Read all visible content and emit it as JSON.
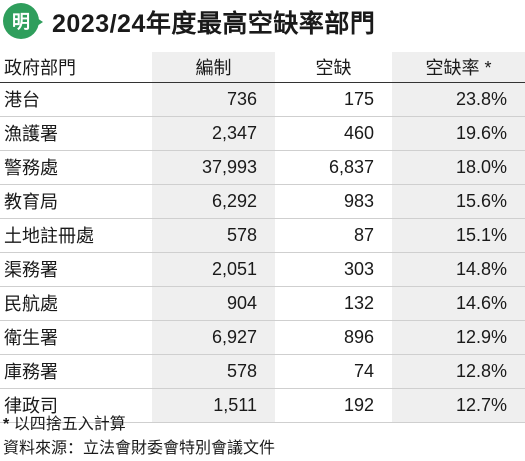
{
  "logo_text": "明",
  "title": "2023/24年度最高空缺率部門",
  "headers": {
    "department": "政府部門",
    "establishment": "編制",
    "vacancies": "空缺",
    "vacancy_rate": "空缺率 *"
  },
  "rows": [
    {
      "department": "港台",
      "establishment": "736",
      "vacancies": "175",
      "vacancy_rate": "23.8%"
    },
    {
      "department": "漁護署",
      "establishment": "2,347",
      "vacancies": "460",
      "vacancy_rate": "19.6%"
    },
    {
      "department": "警務處",
      "establishment": "37,993",
      "vacancies": "6,837",
      "vacancy_rate": "18.0%"
    },
    {
      "department": "教育局",
      "establishment": "6,292",
      "vacancies": "983",
      "vacancy_rate": "15.6%"
    },
    {
      "department": "土地註冊處",
      "establishment": "578",
      "vacancies": "87",
      "vacancy_rate": "15.1%"
    },
    {
      "department": "渠務署",
      "establishment": "2,051",
      "vacancies": "303",
      "vacancy_rate": "14.8%"
    },
    {
      "department": "民航處",
      "establishment": "904",
      "vacancies": "132",
      "vacancy_rate": "14.6%"
    },
    {
      "department": "衛生署",
      "establishment": "6,927",
      "vacancies": "896",
      "vacancy_rate": "12.9%"
    },
    {
      "department": "庫務署",
      "establishment": "578",
      "vacancies": "74",
      "vacancy_rate": "12.8%"
    },
    {
      "department": "律政司",
      "establishment": "1,511",
      "vacancies": "192",
      "vacancy_rate": "12.7%"
    }
  ],
  "footnote_star": "*",
  "footnote": "以四捨五入計算",
  "source": "資料來源：立法會財委會特別會議文件",
  "colors": {
    "logo_green": "#2f9e5c",
    "shade": "#efefef"
  }
}
